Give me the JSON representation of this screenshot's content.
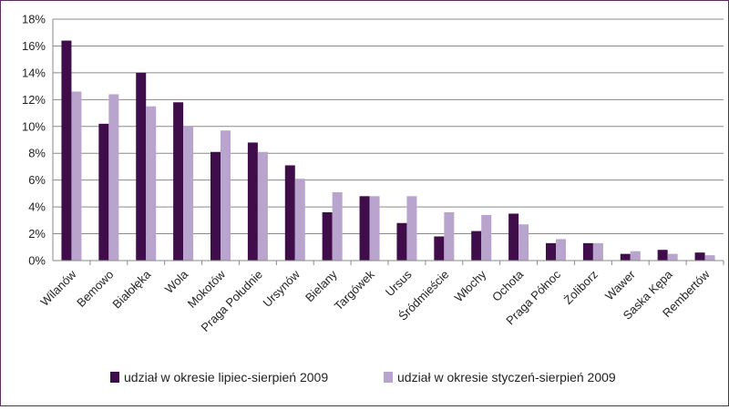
{
  "chart_data": {
    "type": "bar",
    "categories": [
      "Wilanów",
      "Bemowo",
      "Białołęka",
      "Wola",
      "Mokotów",
      "Praga Południe",
      "Ursynów",
      "Bielany",
      "Targówek",
      "Ursus",
      "Śródmieście",
      "Włochy",
      "Ochota",
      "Praga Północ",
      "Żoliborz",
      "Wawer",
      "Saska Kępa",
      "Rembertów"
    ],
    "series": [
      {
        "name": "udział w okresie lipiec-sierpień 2009",
        "color": "#3f0e4a",
        "values": [
          16.4,
          10.2,
          14.0,
          11.8,
          8.1,
          8.8,
          7.1,
          3.6,
          4.8,
          2.8,
          1.8,
          2.2,
          3.5,
          1.3,
          1.3,
          0.5,
          0.8,
          0.6
        ]
      },
      {
        "name": "udział w okresie styczeń-sierpień 2009",
        "color": "#b8a4cc",
        "values": [
          12.6,
          12.4,
          11.5,
          10.0,
          9.7,
          8.1,
          6.1,
          5.1,
          4.8,
          4.8,
          3.6,
          3.4,
          2.7,
          1.6,
          1.3,
          0.7,
          0.5,
          0.4
        ]
      }
    ],
    "yticks": [
      "0%",
      "2%",
      "4%",
      "6%",
      "8%",
      "10%",
      "12%",
      "14%",
      "16%",
      "18%"
    ],
    "ylim": [
      0,
      18
    ],
    "grid": true,
    "legend": "bottom"
  }
}
